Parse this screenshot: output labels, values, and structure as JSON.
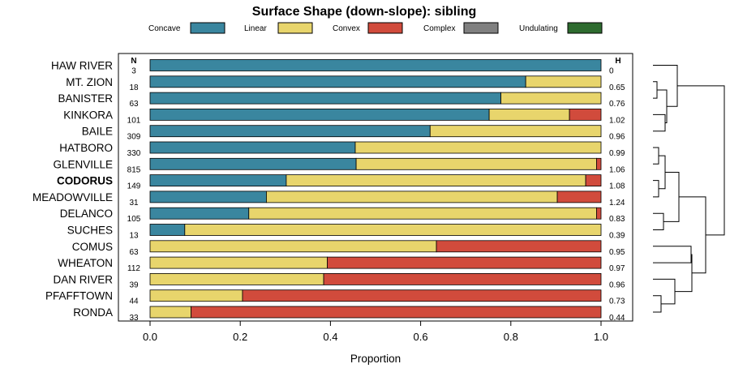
{
  "chart_data": {
    "type": "bar",
    "orientation": "horizontal",
    "stacked": true,
    "title": "Surface Shape (down-slope): sibling",
    "xlabel": "Proportion",
    "ylabel": "",
    "xlim": [
      0,
      1
    ],
    "x_ticks": [
      "0.0",
      "0.2",
      "0.4",
      "0.6",
      "0.8",
      "1.0"
    ],
    "n_header": "N",
    "h_header": "H",
    "highlighted_series": "CODORUS",
    "legend": [
      {
        "label": "Concave",
        "color": "#3a869f"
      },
      {
        "label": "Linear",
        "color": "#e8d56c"
      },
      {
        "label": "Convex",
        "color": "#d14b3c"
      },
      {
        "label": "Complex",
        "color": "#808080"
      },
      {
        "label": "Undulating",
        "color": "#2e6b2f"
      }
    ],
    "categories": [
      "HAW RIVER",
      "MT. ZION",
      "BANISTER",
      "KINKORA",
      "BAILE",
      "HATBORO",
      "GLENVILLE",
      "CODORUS",
      "MEADOWVILLE",
      "DELANCO",
      "SUCHES",
      "COMUS",
      "WHEATON",
      "DAN RIVER",
      "PFAFFTOWN",
      "RONDA"
    ],
    "n": [
      3,
      18,
      63,
      101,
      309,
      330,
      815,
      149,
      31,
      105,
      13,
      63,
      112,
      39,
      44,
      33
    ],
    "h": [
      "0",
      "0.65",
      "0.76",
      "1.02",
      "0.96",
      "0.99",
      "1.06",
      "1.08",
      "1.24",
      "0.83",
      "0.39",
      "0.95",
      "0.97",
      "0.96",
      "0.73",
      "0.44"
    ],
    "series": [
      {
        "name": "Concave",
        "values": [
          1.0,
          0.833,
          0.778,
          0.752,
          0.621,
          0.455,
          0.457,
          0.302,
          0.258,
          0.219,
          0.077,
          0,
          0,
          0,
          0,
          0
        ]
      },
      {
        "name": "Linear",
        "values": [
          0,
          0.167,
          0.222,
          0.178,
          0.379,
          0.545,
          0.533,
          0.664,
          0.645,
          0.771,
          0.923,
          0.635,
          0.393,
          0.385,
          0.205,
          0.091
        ]
      },
      {
        "name": "Convex",
        "values": [
          0,
          0,
          0,
          0.07,
          0,
          0,
          0.01,
          0.034,
          0.097,
          0.01,
          0,
          0.365,
          0.607,
          0.615,
          0.795,
          0.909
        ]
      },
      {
        "name": "Complex",
        "values": [
          0,
          0,
          0,
          0,
          0,
          0,
          0,
          0,
          0,
          0,
          0,
          0,
          0,
          0,
          0,
          0
        ]
      },
      {
        "name": "Undulating",
        "values": [
          0,
          0,
          0,
          0,
          0,
          0,
          0,
          0,
          0,
          0,
          0,
          0,
          0,
          0,
          0,
          0
        ]
      }
    ],
    "dendrogram": "hierarchical clustering of series shown at right"
  }
}
